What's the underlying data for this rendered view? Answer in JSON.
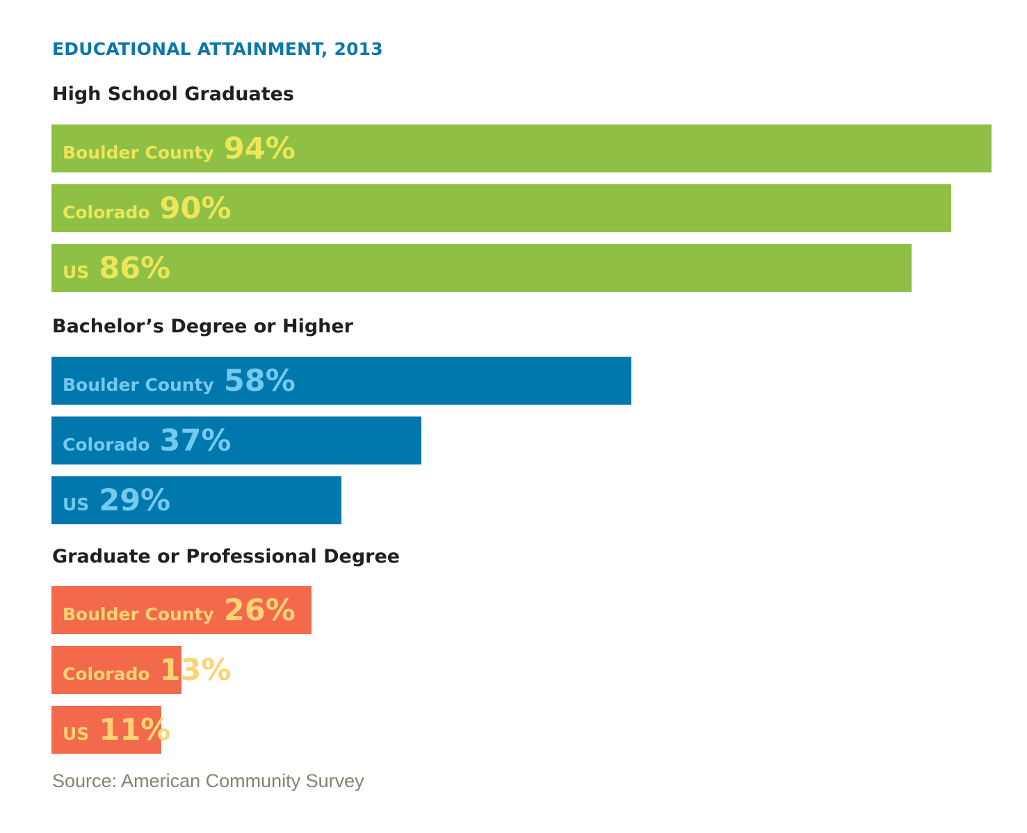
{
  "chart_data": {
    "type": "bar",
    "orientation": "horizontal",
    "title": "EDUCATIONAL ATTAINMENT, 2013",
    "xlim": [
      0,
      94
    ],
    "groups": [
      {
        "name": "High School Graduates",
        "color": "#8fc045",
        "label_color": "#ece65a",
        "bars": [
          {
            "category": "Boulder County",
            "value": 94,
            "label": "94%"
          },
          {
            "category": "Colorado",
            "value": 90,
            "label": "90%"
          },
          {
            "category": "US",
            "value": 86,
            "label": "86%"
          }
        ]
      },
      {
        "name": "Bachelor’s Degree or Higher",
        "color": "#0078ae",
        "label_color": "#74c9ee",
        "bars": [
          {
            "category": "Boulder County",
            "value": 58,
            "label": "58%"
          },
          {
            "category": "Colorado",
            "value": 37,
            "label": "37%"
          },
          {
            "category": "US",
            "value": 29,
            "label": "29%"
          }
        ]
      },
      {
        "name": "Graduate or Professional Degree",
        "color": "#f26a4b",
        "label_color": "#fdd474",
        "bars": [
          {
            "category": "Boulder County",
            "value": 26,
            "label": "26%"
          },
          {
            "category": "Colorado",
            "value": 13,
            "label": "13%"
          },
          {
            "category": "US",
            "value": 11,
            "label": "11%"
          }
        ]
      }
    ],
    "source": "Source: American Community Survey"
  }
}
